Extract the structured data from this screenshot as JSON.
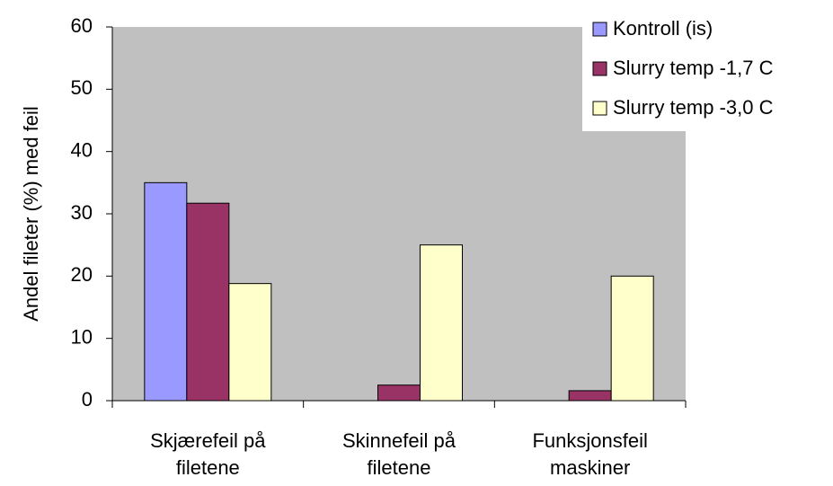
{
  "chart_data": {
    "type": "bar",
    "y_label": "Andel fileter (%) med feil",
    "categories": [
      [
        "Skjærefeil på",
        "filetene"
      ],
      [
        "Skinnefeil på",
        "filetene"
      ],
      [
        "Funksjonsfeil",
        "maskiner"
      ]
    ],
    "series": [
      {
        "name": "Kontroll (is)",
        "color": "#9999ff",
        "values": [
          35,
          0,
          0
        ]
      },
      {
        "name": "Slurry temp -1,7 C",
        "color": "#993366",
        "values": [
          31.7,
          2.5,
          1.6
        ]
      },
      {
        "name": "Slurry temp -3,0 C",
        "color": "#ffffcc",
        "values": [
          18.8,
          25,
          20
        ]
      }
    ],
    "ylim": [
      0,
      60
    ],
    "yticks": [
      0,
      10,
      20,
      30,
      40,
      50,
      60
    ],
    "plot_background": "#c0c0c0",
    "legend": "top-right"
  }
}
